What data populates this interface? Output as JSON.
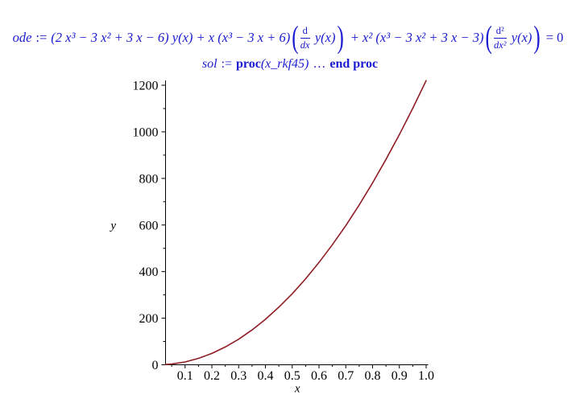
{
  "colors": {
    "math_text": "#1b1bd1",
    "axis": "#000000",
    "curve": "#8f1d23",
    "background": "#ffffff"
  },
  "ode_line": {
    "name": "ode",
    "assign": ":=",
    "term1": "(2 x³ − 3 x² + 3 x − 6) y(x) + x (x³ − 3 x + 6)",
    "lparen": "(",
    "frac1_num": "d",
    "frac1_den": "dx",
    "yofx1": "y(x)",
    "rparen": ")",
    "term2": "+ x² (x³ − 3 x² + 3 x − 3)",
    "lparen2": "(",
    "frac2_num": "d²",
    "frac2_den": "dx²",
    "yofx2": "y(x)",
    "rparen2": ")",
    "equals_zero": "= 0"
  },
  "sol_line": {
    "name": "sol",
    "assign": ":=",
    "proc_keyword": "proc",
    "argument": "(x_rkf45)",
    "ellipsis": "…",
    "end_keyword": "end proc"
  },
  "chart_data": {
    "type": "line",
    "title": "",
    "xlabel": "x",
    "ylabel": "y",
    "xlim": [
      0.027,
      1.0
    ],
    "ylim": [
      0,
      1200
    ],
    "grid": false,
    "legend": "none",
    "x_ticks": [
      {
        "v": 0.1,
        "label": "0.1"
      },
      {
        "v": 0.2,
        "label": "0.2"
      },
      {
        "v": 0.3,
        "label": "0.3"
      },
      {
        "v": 0.4,
        "label": "0.4"
      },
      {
        "v": 0.5,
        "label": "0.5"
      },
      {
        "v": 0.6,
        "label": "0.6"
      },
      {
        "v": 0.7,
        "label": "0.7"
      },
      {
        "v": 0.8,
        "label": "0.8"
      },
      {
        "v": 0.9,
        "label": "0.9"
      },
      {
        "v": 1.0,
        "label": "1.0"
      }
    ],
    "x_minor_ticks": [
      0.05,
      0.15,
      0.25,
      0.35,
      0.45,
      0.55,
      0.65,
      0.75,
      0.85,
      0.95
    ],
    "y_ticks": [
      {
        "v": 0,
        "label": "0"
      },
      {
        "v": 200,
        "label": "200"
      },
      {
        "v": 400,
        "label": "400"
      },
      {
        "v": 600,
        "label": "600"
      },
      {
        "v": 800,
        "label": "800"
      },
      {
        "v": 1000,
        "label": "1000"
      },
      {
        "v": 1200,
        "label": "1200"
      }
    ],
    "y_minor_ticks": [
      100,
      300,
      500,
      700,
      900,
      1100
    ],
    "series": [
      {
        "name": "y(x)",
        "color": "#8f1d23",
        "x": [
          0.027,
          0.05,
          0.1,
          0.15,
          0.2,
          0.25,
          0.3,
          0.35,
          0.4,
          0.45,
          0.5,
          0.55,
          0.6,
          0.65,
          0.7,
          0.75,
          0.8,
          0.85,
          0.9,
          0.95,
          1.0
        ],
        "y": [
          0.9,
          3.1,
          12.2,
          27.5,
          48.8,
          76.3,
          109.8,
          149.5,
          195.2,
          247.1,
          305.0,
          369.1,
          439.2,
          515.5,
          597.8,
          686.3,
          780.8,
          881.5,
          988.2,
          1101.1,
          1220.0
        ]
      }
    ]
  }
}
